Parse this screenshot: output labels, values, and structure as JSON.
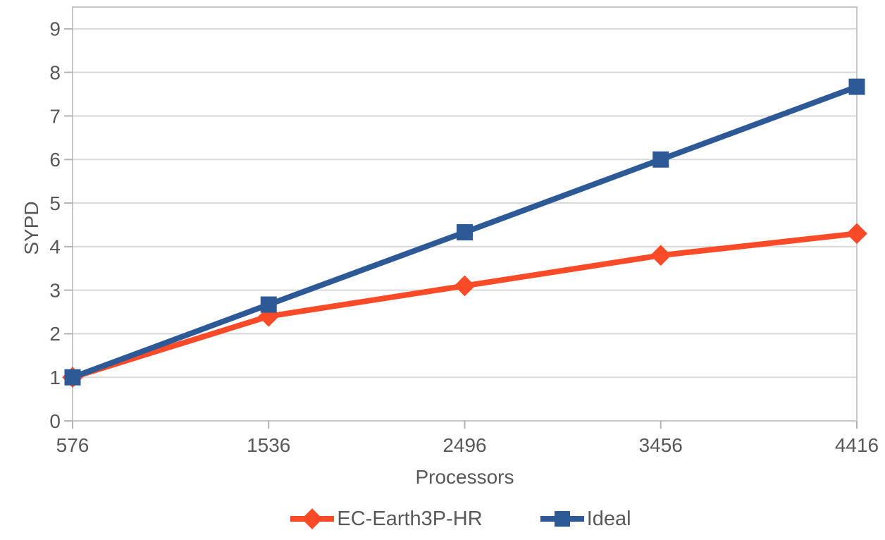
{
  "chart_data": {
    "type": "line",
    "title": "",
    "xlabel": "Processors",
    "ylabel": "SYPD",
    "x_categories": [
      "576",
      "1536",
      "2496",
      "3456",
      "4416"
    ],
    "series": [
      {
        "name": "EC-Earth3P-HR",
        "values": [
          1,
          2.4,
          3.1,
          3.8,
          4.3
        ],
        "color": "#FB4A27",
        "marker": "diamond"
      },
      {
        "name": "Ideal",
        "values": [
          1,
          2.67,
          4.33,
          6,
          7.67
        ],
        "color": "#2D5A97",
        "marker": "square"
      }
    ],
    "ylim": [
      0,
      9.5
    ],
    "yticks": [
      0,
      1,
      2,
      3,
      4,
      5,
      6,
      7,
      8,
      9
    ],
    "grid": "horizontal",
    "legend_position": "bottom"
  },
  "colors": {
    "text": "#58585a",
    "gridline": "#d9d9d9",
    "border": "#c8c8c8",
    "tick": "#b3b3b3",
    "background": "#ffffff"
  }
}
